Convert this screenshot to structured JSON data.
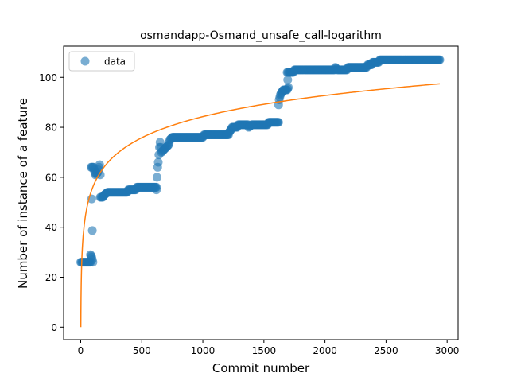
{
  "chart_data": {
    "type": "scatter",
    "title": "osmandapp-Osmand_unsafe_call-logarithm",
    "xlabel": "Commit number",
    "ylabel": "Number of instance of a feature",
    "xlim": [
      -140,
      3090
    ],
    "ylim": [
      -5,
      112.5
    ],
    "xticks": [
      0,
      500,
      1000,
      1500,
      2000,
      2500,
      3000
    ],
    "yticks": [
      0,
      20,
      40,
      60,
      80,
      100
    ],
    "legend": {
      "placement": "top-left",
      "entries": [
        "data"
      ]
    },
    "grid": false,
    "colors": {
      "data": "#1f77b4",
      "fit": "#ff7f0e"
    },
    "series": [
      {
        "name": "data",
        "kind": "scatter",
        "steps": [
          [
            0,
            26
          ],
          [
            80,
            26
          ],
          [
            80,
            29
          ],
          [
            90,
            28
          ],
          [
            100,
            26
          ],
          [
            85,
            64
          ],
          [
            105,
            64
          ],
          [
            120,
            61
          ],
          [
            140,
            62
          ],
          [
            155,
            65
          ],
          [
            160,
            61
          ],
          [
            160,
            52
          ],
          [
            180,
            52
          ],
          [
            195,
            53
          ],
          [
            220,
            54
          ],
          [
            380,
            54
          ],
          [
            390,
            55
          ],
          [
            450,
            55
          ],
          [
            460,
            56
          ],
          [
            620,
            56
          ],
          [
            620,
            55
          ],
          [
            625,
            60
          ],
          [
            630,
            64
          ],
          [
            635,
            66
          ],
          [
            640,
            69
          ],
          [
            645,
            72
          ],
          [
            650,
            74
          ],
          [
            660,
            70
          ],
          [
            680,
            71
          ],
          [
            700,
            72
          ],
          [
            720,
            73
          ],
          [
            730,
            75
          ],
          [
            750,
            76
          ],
          [
            1000,
            76
          ],
          [
            1010,
            77
          ],
          [
            1210,
            77
          ],
          [
            1215,
            78
          ],
          [
            1230,
            79
          ],
          [
            1240,
            80
          ],
          [
            1280,
            80
          ],
          [
            1290,
            81
          ],
          [
            1370,
            81
          ],
          [
            1375,
            80
          ],
          [
            1400,
            81
          ],
          [
            1530,
            81
          ],
          [
            1540,
            82
          ],
          [
            1620,
            82
          ],
          [
            1620,
            89
          ],
          [
            1625,
            91
          ],
          [
            1635,
            93
          ],
          [
            1645,
            94
          ],
          [
            1660,
            95
          ],
          [
            1690,
            95
          ],
          [
            1700,
            96
          ],
          [
            1690,
            102
          ],
          [
            1740,
            102
          ],
          [
            1750,
            103
          ],
          [
            2080,
            103
          ],
          [
            2085,
            104
          ],
          [
            2100,
            103
          ],
          [
            2180,
            103
          ],
          [
            2190,
            104
          ],
          [
            2340,
            104
          ],
          [
            2350,
            105
          ],
          [
            2380,
            105
          ],
          [
            2390,
            106
          ],
          [
            2440,
            106
          ],
          [
            2450,
            107
          ],
          [
            2940,
            107
          ]
        ]
      },
      {
        "name": "",
        "kind": "line",
        "fit": {
          "model": "a*log(x)+b",
          "a": 12.2,
          "b": 0,
          "x_range": [
            1,
            2940
          ]
        }
      }
    ]
  }
}
